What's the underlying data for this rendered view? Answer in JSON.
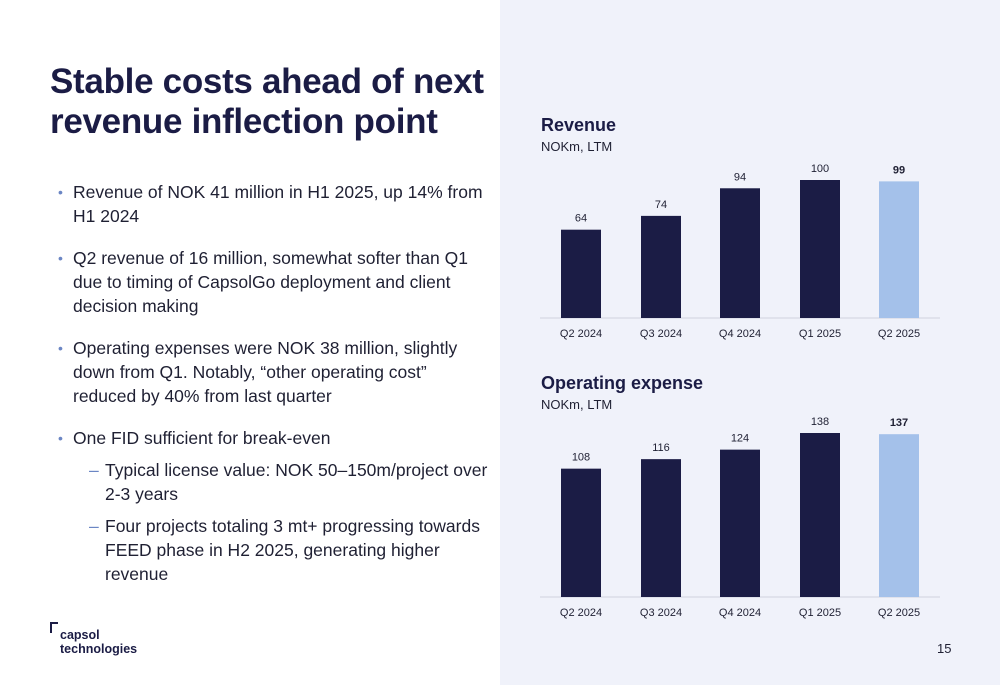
{
  "title": "Stable costs ahead of next revenue inflection point",
  "bullets": [
    {
      "text": "Revenue of NOK 41 million in H1 2025, up 14% from H1 2024"
    },
    {
      "text": "Q2 revenue of 16 million, somewhat softer than Q1 due to timing of CapsolGo deployment and client decision making"
    },
    {
      "text": "Operating expenses were NOK 38 million, slightly down from Q1. Notably, “other operating cost” reduced by 40% from last quarter"
    },
    {
      "text": "One FID sufficient for break-even"
    }
  ],
  "sub_bullets": [
    {
      "text": "Typical license value: NOK 50–150m/project over 2-3 years"
    },
    {
      "text": "Four projects totaling 3 mt+ progressing towards FEED phase in H2 2025, generating higher revenue"
    }
  ],
  "bullet_marker": "•",
  "sub_marker": "–",
  "logo": {
    "line1": "capsol",
    "line2": "technologies"
  },
  "page_number": "15",
  "colors": {
    "dark_bar": "#1b1c45",
    "highlight_bar": "#a4c1ea",
    "panel_bg": "#f0f2fa",
    "axis": "#d0d3de"
  },
  "chart_data": [
    {
      "type": "bar",
      "title": "Revenue",
      "subtitle": "NOKm, LTM",
      "categories": [
        "Q2 2024",
        "Q3 2024",
        "Q4 2024",
        "Q1 2025",
        "Q2 2025"
      ],
      "values": [
        64,
        74,
        94,
        100,
        99
      ],
      "highlight_index": 4,
      "ylim": [
        0,
        100
      ],
      "grid": false,
      "legend": false
    },
    {
      "type": "bar",
      "title": "Operating expense",
      "subtitle": "NOKm, LTM",
      "categories": [
        "Q2 2024",
        "Q3 2024",
        "Q4 2024",
        "Q1 2025",
        "Q2 2025"
      ],
      "values": [
        108,
        116,
        124,
        138,
        137
      ],
      "highlight_index": 4,
      "ylim": [
        0,
        138
      ],
      "grid": false,
      "legend": false
    }
  ]
}
